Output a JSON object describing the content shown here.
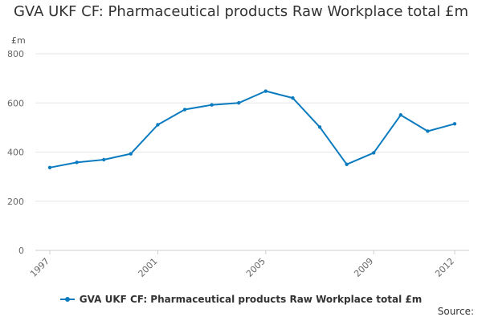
{
  "chart_data": {
    "type": "line",
    "title": "GVA UKF CF: Pharmaceutical products Raw Workplace total £m",
    "ylabel": "£m",
    "xlabel": "",
    "ylim": [
      0,
      800
    ],
    "yticks": [
      0,
      200,
      400,
      600,
      800
    ],
    "x": [
      1997,
      1998,
      1999,
      2000,
      2001,
      2002,
      2003,
      2004,
      2005,
      2006,
      2007,
      2008,
      2009,
      2010,
      2011,
      2012
    ],
    "xtick_labels": [
      "1997",
      "2001",
      "2005",
      "2009",
      "2012"
    ],
    "series": [
      {
        "name": "GVA UKF CF: Pharmaceutical products Raw Workplace total £m",
        "color": "#0b7bbf",
        "values": [
          337,
          358,
          369,
          393,
          511,
          573,
          592,
          600,
          648,
          620,
          502,
          350,
          397,
          551,
          485,
          515
        ]
      }
    ],
    "grid": true,
    "legend": "bottom-center",
    "source_label": "Source:"
  }
}
